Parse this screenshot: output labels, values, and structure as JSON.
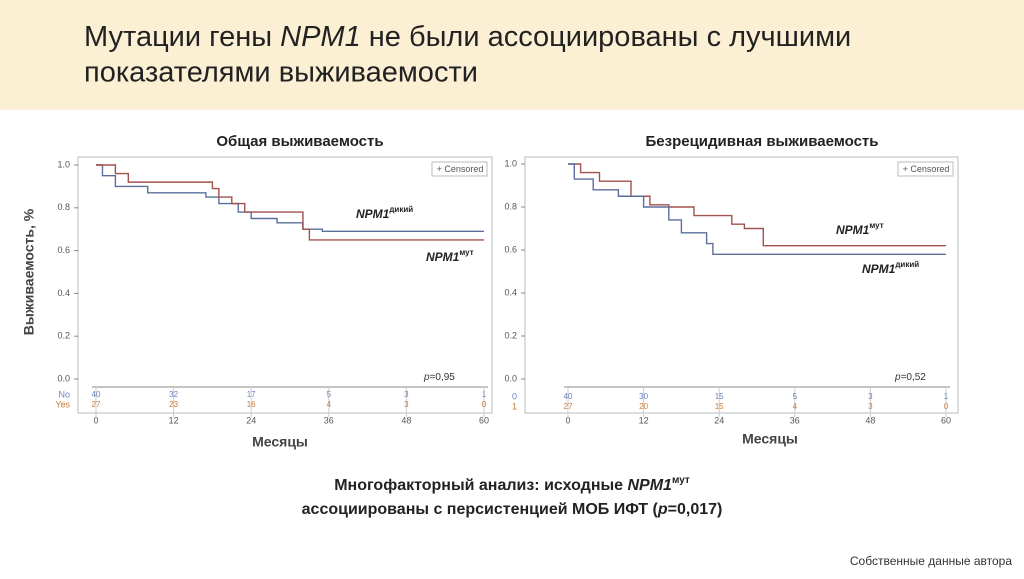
{
  "title": [
    "Мутации гены ",
    "NPM1",
    " не были ассоциированы с лучшими",
    "показателями выживаемости"
  ],
  "y_axis_label": "Выживаемость, %",
  "chart_data": [
    {
      "type": "line",
      "title": "Общая выживаемость",
      "x_label": "Месяцы",
      "legend": "+ Censored",
      "annotation_p": "p",
      "annotation": "=0,95",
      "xlim": [
        0,
        60
      ],
      "xticks": [
        0,
        12,
        24,
        36,
        48,
        60
      ],
      "ylim": [
        0,
        1
      ],
      "yticks": [
        {
          "value": 0,
          "label": "0.0"
        },
        0.2,
        0.4,
        0.6,
        0.8,
        {
          "value": 1,
          "label": "1.0"
        }
      ],
      "series": [
        {
          "name": "NPM1",
          "name_sup": "дикий",
          "color": "#5b6f9c",
          "x": [
            0,
            1,
            3,
            8,
            17,
            19,
            22,
            24,
            28,
            32,
            35,
            60
          ],
          "values": [
            1,
            0.95,
            0.9,
            0.87,
            0.85,
            0.82,
            0.78,
            0.75,
            0.73,
            0.7,
            0.69,
            0.69
          ]
        },
        {
          "name": "NPM1",
          "name_sup": "мут",
          "color": "#a0524c",
          "x": [
            0,
            3,
            5,
            18,
            19,
            21,
            23,
            32,
            33,
            60
          ],
          "values": [
            1,
            0.96,
            0.92,
            0.89,
            0.85,
            0.82,
            0.78,
            0.7,
            0.65,
            0.65
          ]
        }
      ],
      "risk_table": [
        {
          "label": "No",
          "color": "#6b84b8",
          "values": [
            40,
            32,
            17,
            5,
            3,
            1
          ]
        },
        {
          "label": "Yes",
          "color": "#c77b3a",
          "values": [
            27,
            23,
            16,
            4,
            3,
            0
          ]
        }
      ]
    },
    {
      "type": "line",
      "title": "Безрецидивная выживаемость",
      "x_label": "Месяцы",
      "legend": "+ Censored",
      "annotation_p": "p",
      "annotation": "=0,52",
      "xlim": [
        0,
        60
      ],
      "xticks": [
        0,
        12,
        24,
        36,
        48,
        60
      ],
      "ylim": [
        0,
        1
      ],
      "yticks": [
        {
          "value": 0,
          "label": "0.0"
        },
        0.2,
        0.4,
        0.6,
        0.8,
        {
          "value": 1,
          "label": "1.0"
        }
      ],
      "series": [
        {
          "name": "NPM1",
          "name_sup": "мут",
          "color": "#a0524c",
          "x": [
            0,
            2,
            5,
            10,
            13,
            16,
            20,
            26,
            28,
            31,
            60
          ],
          "values": [
            1,
            0.96,
            0.92,
            0.85,
            0.81,
            0.8,
            0.76,
            0.72,
            0.7,
            0.62,
            0.62
          ]
        },
        {
          "name": "NPM1",
          "name_sup": "дикий",
          "color": "#5b6f9c",
          "x": [
            0,
            1,
            4,
            8,
            12,
            16,
            18,
            22,
            23,
            60
          ],
          "values": [
            1,
            0.93,
            0.88,
            0.85,
            0.8,
            0.74,
            0.68,
            0.63,
            0.58,
            0.58
          ]
        }
      ],
      "risk_table": [
        {
          "label": "0",
          "color": "#6b84b8",
          "values": [
            40,
            30,
            15,
            5,
            3,
            1
          ]
        },
        {
          "label": "1",
          "color": "#c77b3a",
          "values": [
            27,
            20,
            15,
            4,
            3,
            0
          ]
        }
      ]
    }
  ],
  "conclusion": [
    "Многофакторный анализ: исходные ",
    "NPM1",
    "мут",
    "ассоциированы с персистенцией МОБ ИФТ (",
    "p",
    "=0,017)"
  ],
  "footnote": "Собственные данные автора"
}
